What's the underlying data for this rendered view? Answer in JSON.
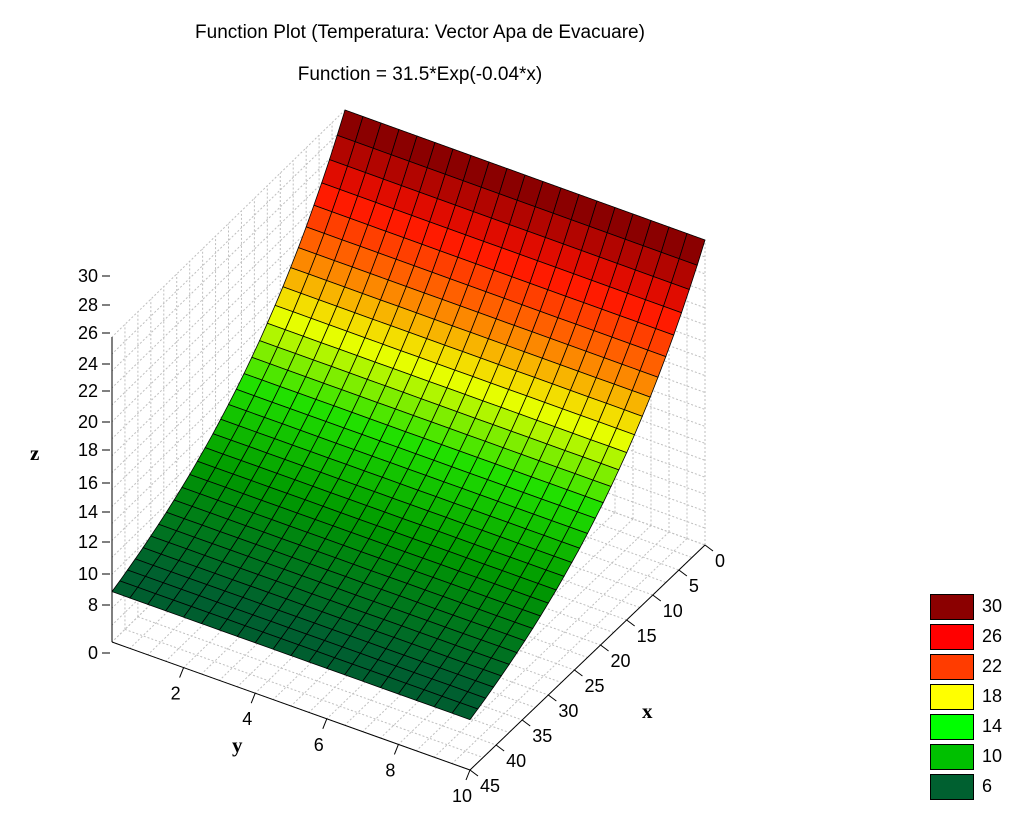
{
  "chart_data": {
    "type": "surface",
    "title": "Function Plot (Temperatura: Vector Apa de Evacuare)",
    "subtitle": "Function = 31.5*Exp(-0.04*x)",
    "function": {
      "a": 31.5,
      "b": -0.04
    },
    "x": {
      "label": "x",
      "range": [
        0,
        45
      ],
      "ticks": [
        "0",
        "5",
        "10",
        "15",
        "20",
        "25",
        "30",
        "35",
        "40",
        "45"
      ]
    },
    "y": {
      "label": "y",
      "range": [
        0,
        10
      ],
      "ticks": [
        "2",
        "4",
        "6",
        "8",
        "10"
      ]
    },
    "z": {
      "label": "z",
      "range": [
        0,
        31.5
      ],
      "ticks": [
        "30",
        "28",
        "26",
        "24",
        "22",
        "20",
        "18",
        "16",
        "14",
        "12",
        "10",
        "8",
        "0"
      ]
    },
    "legend": [
      {
        "label": "30",
        "color": "#8b0000"
      },
      {
        "label": "26",
        "color": "#ff0000"
      },
      {
        "label": "22",
        "color": "#ff3c00"
      },
      {
        "label": "18",
        "color": "#ffff00"
      },
      {
        "label": "14",
        "color": "#00ff00"
      },
      {
        "label": "10",
        "color": "#00c000"
      },
      {
        "label": "6",
        "color": "#006030"
      }
    ],
    "legend_position": "bottom-right",
    "grid": true
  }
}
